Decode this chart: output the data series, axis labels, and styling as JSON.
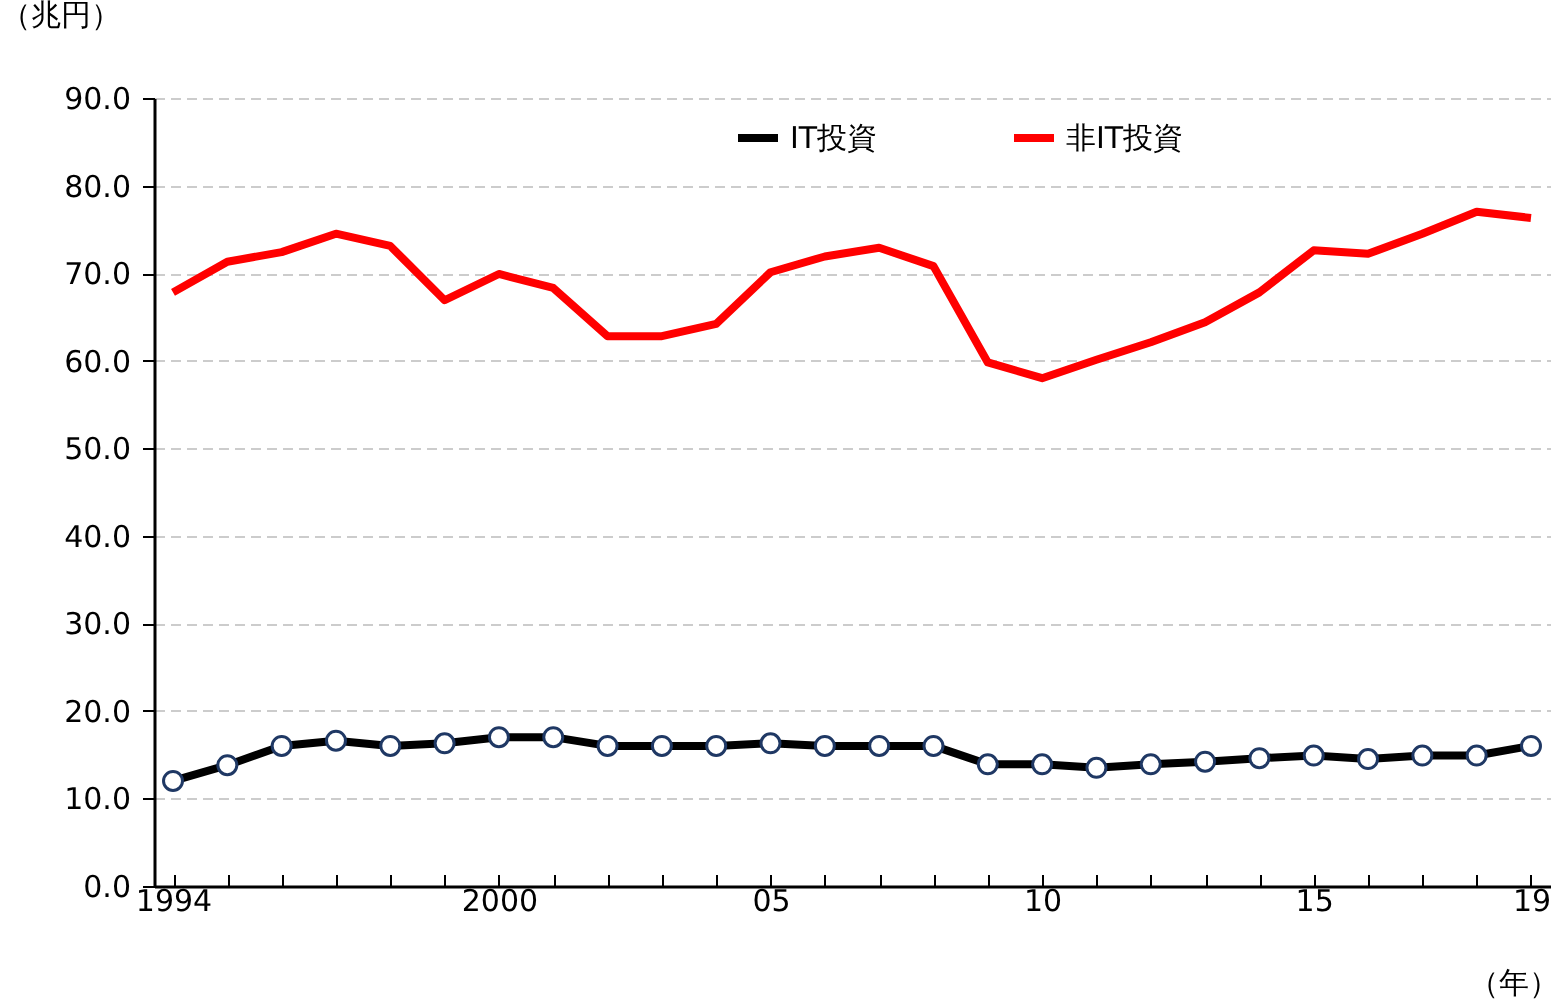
{
  "chart_data": {
    "type": "line",
    "xlabel": "（年）",
    "ylabel": "（兆円）",
    "categories": [
      "1994",
      null,
      null,
      null,
      null,
      null,
      "2000",
      null,
      null,
      null,
      null,
      "05",
      null,
      null,
      null,
      null,
      "10",
      null,
      null,
      null,
      null,
      "15",
      null,
      null,
      null,
      "19"
    ],
    "series": [
      {
        "name": "IT投資",
        "color": "#000000",
        "marker": "circle",
        "values": [
          12.0,
          13.8,
          16.0,
          16.6,
          16.0,
          16.3,
          17.0,
          17.0,
          16.0,
          16.0,
          16.0,
          16.3,
          16.0,
          16.0,
          16.0,
          13.9,
          13.9,
          13.5,
          13.9,
          14.2,
          14.6,
          14.9,
          14.5,
          14.9,
          14.9,
          16.0
        ]
      },
      {
        "name": "非IT投資",
        "color": "#ff0000",
        "marker": "none",
        "values": [
          67.8,
          71.3,
          72.4,
          74.5,
          73.1,
          66.9,
          69.9,
          68.3,
          62.8,
          62.8,
          64.2,
          70.1,
          71.9,
          72.9,
          70.8,
          59.8,
          58.0,
          60.1,
          62.1,
          64.4,
          67.8,
          72.6,
          72.2,
          74.5,
          77.0,
          76.3
        ]
      }
    ],
    "ylim": [
      0,
      90
    ],
    "yticks": [
      {
        "value": 0,
        "label": "0.0"
      },
      {
        "value": 10,
        "label": "10.0"
      },
      {
        "value": 20,
        "label": "20.0"
      },
      {
        "value": 30,
        "label": "30.0"
      },
      {
        "value": 40,
        "label": "40.0"
      },
      {
        "value": 50,
        "label": "50.0"
      },
      {
        "value": 60,
        "label": "60.0"
      },
      {
        "value": 70,
        "label": "70.0"
      },
      {
        "value": 80,
        "label": "80.0"
      },
      {
        "value": 90,
        "label": "90.0"
      }
    ],
    "grid": "y",
    "legend": "top",
    "line_style": "solid"
  }
}
